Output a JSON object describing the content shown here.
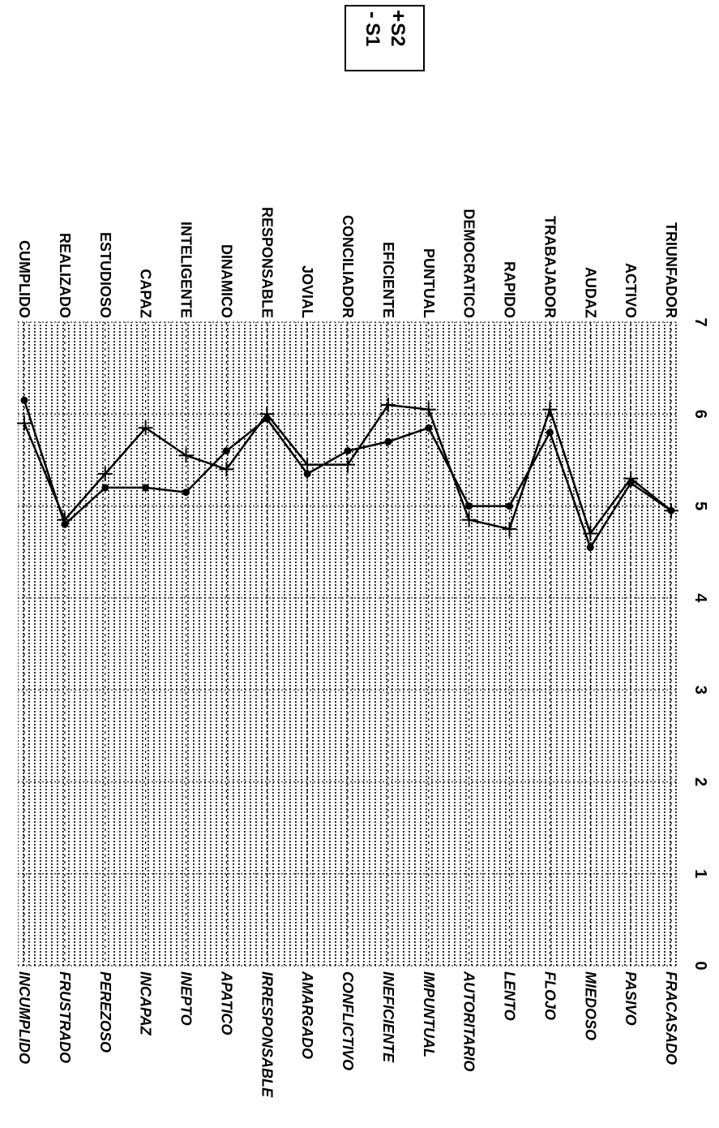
{
  "chart_data": {
    "type": "line",
    "orientation": "rotated 90 degrees clockwise (value axis runs along the bottom edge, categories down the page)",
    "categories_left": [
      "INCUMPLIDO",
      "FRUSTRADO",
      "PEREZOSO",
      "INCAPAZ",
      "INEPTO",
      "APATICO",
      "IRRESPONSABLE",
      "AMARGADO",
      "CONFLICTIVO",
      "INEFICIENTE",
      "IMPUNTUAL",
      "AUTORITARIO",
      "LENTO",
      "FLOJO",
      "MIEDOSO",
      "PASIVO",
      "FRACASADO"
    ],
    "categories_right": [
      "CUMPLIDO",
      "REALIZADO",
      "ESTUDIOSO",
      "CAPAZ",
      "INTELIGENTE",
      "DINAMICO",
      "RESPONSABLE",
      "JOVIAL",
      "CONCILIADOR",
      "EFICIENTE",
      "PUNTUAL",
      "DEMOCRATICO",
      "RAPIDO",
      "TRABAJADOR",
      "AUDAZ",
      "ACTIVO",
      "TRIUNFADOR"
    ],
    "x_ticks": [
      "0",
      "1",
      "2",
      "3",
      "4",
      "5",
      "6",
      "7"
    ],
    "xlim": [
      0,
      7
    ],
    "grid": true,
    "legend_position": "top-right",
    "series": [
      {
        "name": "S1",
        "marker": "dot",
        "color": "#000000",
        "values": [
          6.15,
          4.8,
          5.2,
          5.2,
          5.15,
          5.6,
          5.95,
          5.35,
          5.6,
          5.7,
          5.85,
          5.0,
          5.0,
          5.8,
          4.55,
          5.25,
          4.95
        ]
      },
      {
        "name": "S2",
        "marker": "plus",
        "color": "#000000",
        "values": [
          5.9,
          4.85,
          5.35,
          5.85,
          5.55,
          5.4,
          6.0,
          5.45,
          5.45,
          6.1,
          6.05,
          4.85,
          4.75,
          6.05,
          4.7,
          5.3,
          4.95
        ]
      }
    ]
  },
  "legend": {
    "s1_label": "S1",
    "s2_label": "S2"
  }
}
